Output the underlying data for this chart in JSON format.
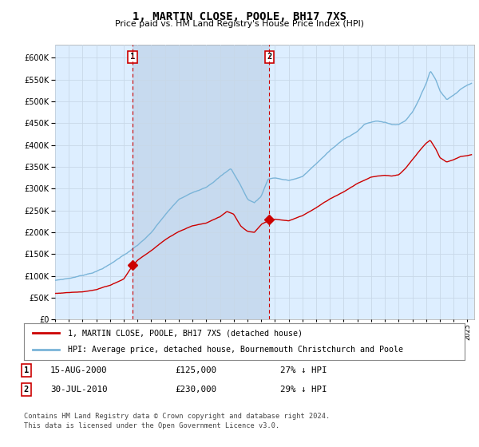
{
  "title": "1, MARTIN CLOSE, POOLE, BH17 7XS",
  "subtitle": "Price paid vs. HM Land Registry's House Price Index (HPI)",
  "sale1_year": 2000.625,
  "sale1_price": 125000,
  "sale1_label": "1",
  "sale1_date_str": "15-AUG-2000",
  "sale1_hpi_diff": "27% ↓ HPI",
  "sale2_year": 2010.583,
  "sale2_price": 230000,
  "sale2_label": "2",
  "sale2_date_str": "30-JUL-2010",
  "sale2_hpi_diff": "29% ↓ HPI",
  "legend_property": "1, MARTIN CLOSE, POOLE, BH17 7XS (detached house)",
  "legend_hpi": "HPI: Average price, detached house, Bournemouth Christchurch and Poole",
  "footer": "Contains HM Land Registry data © Crown copyright and database right 2024.\nThis data is licensed under the Open Government Licence v3.0.",
  "ylim_min": 0,
  "ylim_max": 630000,
  "xmin": 1995.0,
  "xmax": 2025.5,
  "hpi_color": "#7ab4d8",
  "property_color": "#cc0000",
  "sale_marker_color": "#cc0000",
  "grid_color": "#c8d8e8",
  "plot_bg": "#ddeeff",
  "shade_color": "#c5d8ee",
  "fig_bg": "#ffffff"
}
